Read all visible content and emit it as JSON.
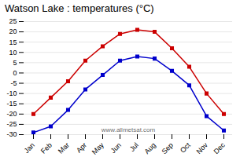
{
  "chart_data": {
    "type": "line",
    "title": "Watson Lake : temperatures (°C)",
    "categories": [
      "Jan",
      "Feb",
      "Mar",
      "Apr",
      "May",
      "Jun",
      "Jul",
      "Aug",
      "Sep",
      "Oct",
      "Nov",
      "Dec"
    ],
    "series": [
      {
        "color": "#cc0000",
        "marker": "square",
        "values": [
          -20,
          -12,
          -4,
          6,
          13,
          19,
          21,
          20,
          12,
          3,
          -10,
          -20
        ]
      },
      {
        "color": "#0000cc",
        "marker": "square",
        "values": [
          -29,
          -26,
          -18,
          -8,
          -1,
          6,
          8,
          7,
          1,
          -6,
          -21,
          -28
        ]
      }
    ],
    "ylim": [
      -30,
      25
    ],
    "yticks": [
      -30,
      -25,
      -20,
      -15,
      -10,
      -5,
      0,
      5,
      10,
      15,
      20,
      25
    ],
    "grid": true,
    "annotation": "www.allmetsat.com"
  }
}
